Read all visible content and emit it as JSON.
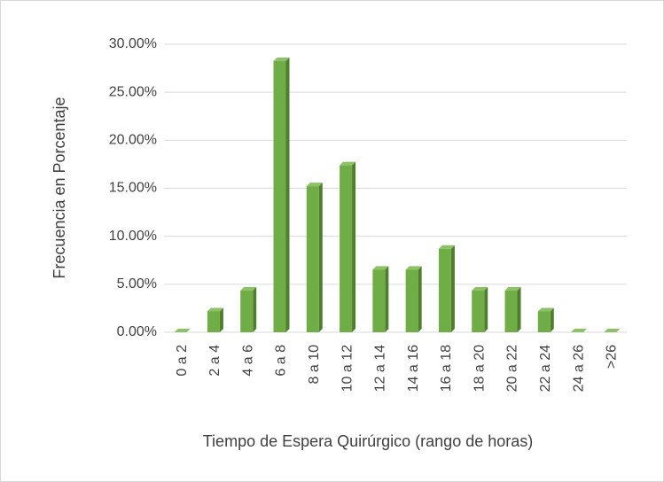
{
  "chart_data": {
    "type": "bar",
    "xlabel": "Tiempo de Espera Quirúrgico (rango de horas)",
    "ylabel": "Frecuencia en Porcentaje",
    "categories": [
      "0 a 2",
      "2 a 4",
      "4 a 6",
      "6 a 8",
      "8 a 10",
      "10 a 12",
      "12 a 14",
      "14 a 16",
      "16 a 18",
      "18 a 20",
      "20 a 22",
      "22 a 24",
      "24 a 26",
      ">26"
    ],
    "values": [
      0,
      2.17,
      4.35,
      28.26,
      15.22,
      17.39,
      6.52,
      6.52,
      8.7,
      4.35,
      4.35,
      2.17,
      0,
      0
    ],
    "color": "#70ad47",
    "ylim": [
      0,
      30
    ],
    "yticks": [
      {
        "value": 0,
        "label": "0.00%"
      },
      {
        "value": 5,
        "label": "5.00%"
      },
      {
        "value": 10,
        "label": "10.00%"
      },
      {
        "value": 15,
        "label": "15.00%"
      },
      {
        "value": 20,
        "label": "20.00%"
      },
      {
        "value": 25,
        "label": "25.00%"
      },
      {
        "value": 30,
        "label": "30.00%"
      }
    ],
    "grid": true
  }
}
